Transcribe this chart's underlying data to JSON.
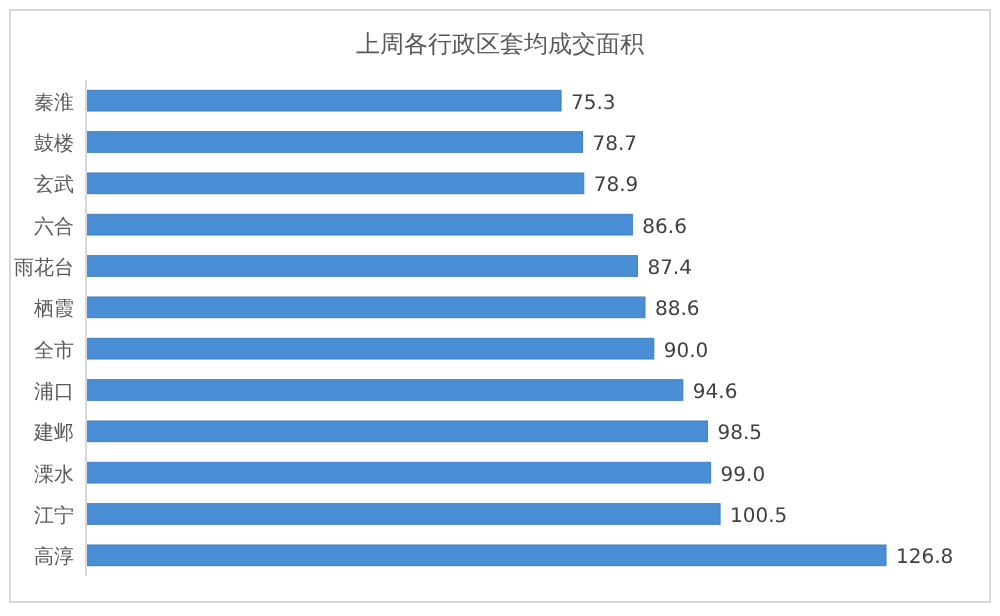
{
  "chart_data": {
    "type": "bar",
    "orientation": "horizontal",
    "title": "上周各行政区套均成交面积",
    "categories": [
      "秦淮",
      "鼓楼",
      "玄武",
      "六合",
      "雨花台",
      "栖霞",
      "全市",
      "浦口",
      "建邺",
      "溧水",
      "江宁",
      "高淳"
    ],
    "values": [
      75.3,
      78.7,
      78.9,
      86.6,
      87.4,
      88.6,
      90.0,
      94.6,
      98.5,
      99.0,
      100.5,
      126.8
    ],
    "value_labels": [
      "75.3",
      "78.7",
      "78.9",
      "86.6",
      "87.4",
      "88.6",
      "90.0",
      "94.6",
      "98.5",
      "99.0",
      "100.5",
      "126.8"
    ],
    "color": "#4a8fd6"
  }
}
